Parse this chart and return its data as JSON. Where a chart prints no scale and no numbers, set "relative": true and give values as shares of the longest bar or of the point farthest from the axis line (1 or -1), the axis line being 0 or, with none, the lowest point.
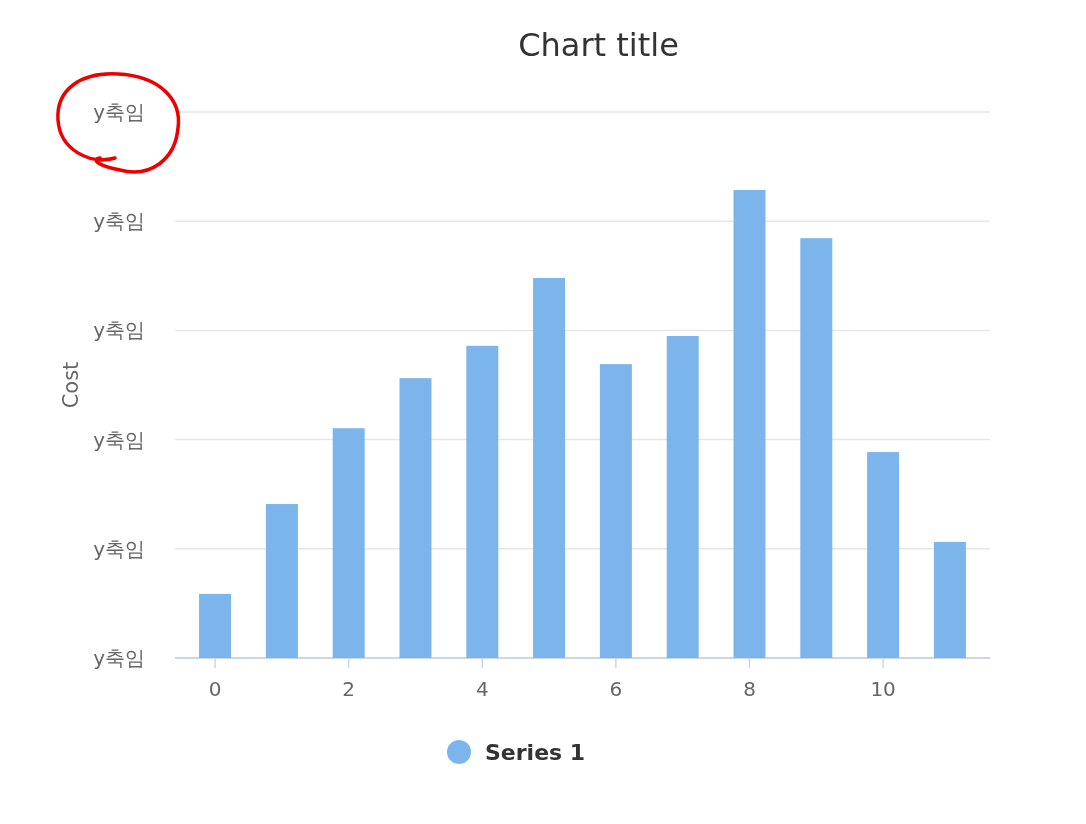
{
  "chart_data": {
    "type": "bar",
    "title": "Chart title",
    "ylabel": "Cost",
    "relative": true,
    "x": [
      0,
      1,
      2,
      3,
      4,
      5,
      6,
      7,
      8,
      9,
      10,
      11
    ],
    "xlim": [
      -0.6,
      11.6
    ],
    "xticks": [
      0,
      2,
      4,
      6,
      8,
      10
    ],
    "annotations": [
      "y축임",
      "y축임",
      "y축임",
      "y축임",
      "y축임",
      "y축임"
    ],
    "series": [
      {
        "name": "Series 1",
        "color": "#7cb5ec",
        "values": [
          0.137,
          0.329,
          0.491,
          0.598,
          0.667,
          0.812,
          0.628,
          0.688,
          1,
          0.897,
          0.44,
          0.248
        ]
      }
    ],
    "grid": "y",
    "legend": "bottom"
  }
}
